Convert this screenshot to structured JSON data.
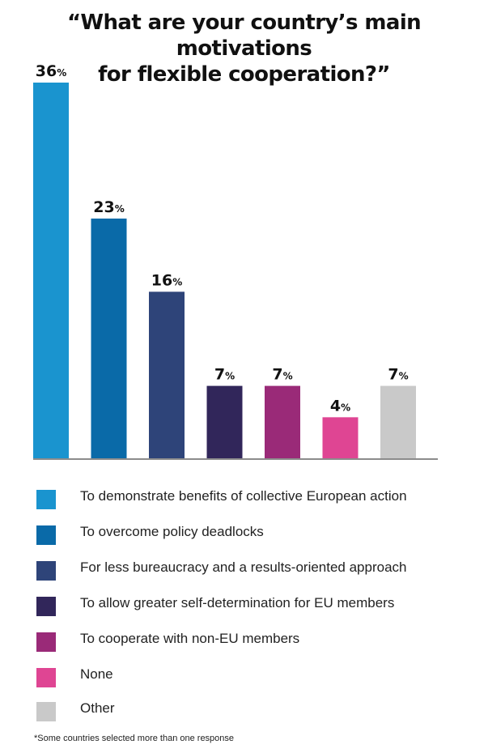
{
  "title_line1": "“What are your country’s main motivations",
  "title_line2": "for flexible cooperation?”",
  "footnote": "*Some countries selected more than one response",
  "chart_data": {
    "type": "bar",
    "title": "“What are your country’s main motivations for flexible cooperation?”",
    "unit": "%",
    "ylim": [
      0,
      36
    ],
    "grid": false,
    "legend_placement": "bottom",
    "categories": [
      "To demonstrate benefits of collective European action",
      "To overcome policy deadlocks",
      "For less bureaucracy and a results-oriented approach",
      "To allow greater self-determination for EU members",
      "To cooperate with non-EU members",
      "None",
      "Other"
    ],
    "values": [
      36,
      23,
      16,
      7,
      7,
      4,
      7
    ],
    "colors": [
      "#1a94cf",
      "#0a6aa8",
      "#2e4479",
      "#31265a",
      "#9a2a78",
      "#df4593",
      "#c9c9c9"
    ]
  }
}
